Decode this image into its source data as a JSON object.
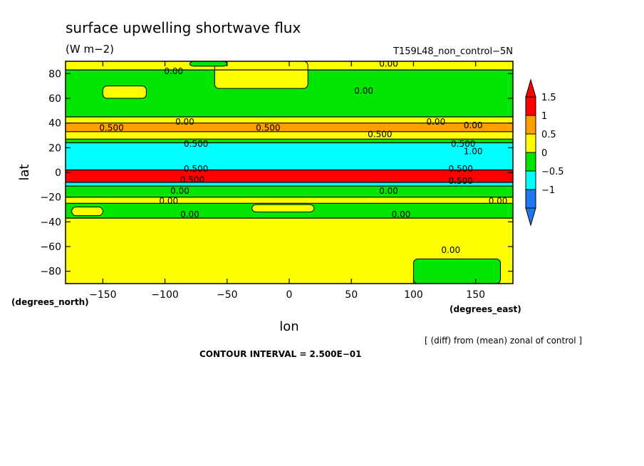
{
  "chart_data": {
    "type": "heatmap",
    "title": "surface upwelling shortwave flux",
    "units": "(W m−2)",
    "dataset": "T159L48_non_control−5N",
    "xlabel": "lon",
    "ylabel": "lat",
    "xunit": "(degrees_east)",
    "yunit": "(degrees_north)",
    "xlim": [
      -180,
      180
    ],
    "ylim": [
      -90,
      90
    ],
    "x_ticks": [
      -150,
      -100,
      -50,
      0,
      50,
      100,
      150
    ],
    "x_tick_labels": [
      "−150",
      "−100",
      "−50",
      "0",
      "50",
      "100",
      "150"
    ],
    "y_ticks": [
      80,
      60,
      40,
      20,
      0,
      -20,
      -40,
      -60,
      -80
    ],
    "y_tick_labels": [
      "80",
      "60",
      "40",
      "20",
      "0",
      "−20",
      "−40",
      "−60",
      "−80"
    ],
    "colorbar": {
      "levels": [
        -1,
        -0.5,
        0,
        0.5,
        1,
        1.5
      ],
      "labels": [
        "−1",
        "−0.5",
        "0",
        "0.5",
        "1",
        "1.5"
      ],
      "colors": [
        "#1e78f0",
        "#00ffff",
        "#00e600",
        "#ffff00",
        "#ffa000",
        "#ff0000"
      ],
      "under_color": "#1e78f0",
      "over_color": "#ff0000"
    },
    "lat_bands": [
      {
        "lat_from": 90,
        "lat_to": 83,
        "value": 0.25
      },
      {
        "lat_from": 83,
        "lat_to": 45,
        "value": -0.25
      },
      {
        "lat_from": 45,
        "lat_to": 40,
        "value": 0.25
      },
      {
        "lat_from": 40,
        "lat_to": 33,
        "value": 0.75
      },
      {
        "lat_from": 33,
        "lat_to": 27,
        "value": 0.25
      },
      {
        "lat_from": 27,
        "lat_to": 24,
        "value": -0.25
      },
      {
        "lat_from": 24,
        "lat_to": 2,
        "value": -0.75
      },
      {
        "lat_from": 2,
        "lat_to": -8,
        "value": 1.75
      },
      {
        "lat_from": -8,
        "lat_to": -11,
        "value": -0.75
      },
      {
        "lat_from": -11,
        "lat_to": -20,
        "value": -0.25
      },
      {
        "lat_from": -20,
        "lat_to": -25,
        "value": 0.25
      },
      {
        "lat_from": -25,
        "lat_to": -37,
        "value": -0.25
      },
      {
        "lat_from": -37,
        "lat_to": -90,
        "value": 0.25
      }
    ],
    "patches": [
      {
        "lon": [
          -60,
          15
        ],
        "lat": [
          68,
          90
        ],
        "value": 0.25
      },
      {
        "lon": [
          -150,
          -115
        ],
        "lat": [
          60,
          70
        ],
        "value": 0.25
      },
      {
        "lon": [
          -80,
          -50
        ],
        "lat": [
          86,
          90
        ],
        "value": -0.25
      },
      {
        "lon": [
          100,
          170
        ],
        "lat": [
          -90,
          -70
        ],
        "value": -0.25
      },
      {
        "lon": [
          -175,
          -150
        ],
        "lat": [
          -35,
          -28
        ],
        "value": 0.25
      },
      {
        "lon": [
          -30,
          20
        ],
        "lat": [
          -32,
          -26
        ],
        "value": 0.25
      }
    ],
    "contour_labels": [
      {
        "lon": -93,
        "lat": 82,
        "text": "0.00"
      },
      {
        "lon": 80,
        "lat": 88,
        "text": "0.00"
      },
      {
        "lon": 60,
        "lat": 66,
        "text": "0.00"
      },
      {
        "lon": -84,
        "lat": 41,
        "text": "0.00"
      },
      {
        "lon": 118,
        "lat": 41,
        "text": "0.00"
      },
      {
        "lon": 148,
        "lat": 38,
        "text": "0.00"
      },
      {
        "lon": -143,
        "lat": 36,
        "text": "0.500"
      },
      {
        "lon": -17,
        "lat": 36,
        "text": "0.500"
      },
      {
        "lon": 73,
        "lat": 31,
        "text": "0.500"
      },
      {
        "lon": 140,
        "lat": 23,
        "text": "0.500"
      },
      {
        "lon": -75,
        "lat": 23,
        "text": "0.500"
      },
      {
        "lon": 148,
        "lat": 17,
        "text": "1.00"
      },
      {
        "lon": -75,
        "lat": 3,
        "text": "0.500"
      },
      {
        "lon": 138,
        "lat": 3,
        "text": "0.500"
      },
      {
        "lon": -78,
        "lat": -6,
        "text": "0.500"
      },
      {
        "lon": 138,
        "lat": -7,
        "text": "0.500"
      },
      {
        "lon": -88,
        "lat": -15,
        "text": "0.00"
      },
      {
        "lon": 80,
        "lat": -15,
        "text": "0.00"
      },
      {
        "lon": -97,
        "lat": -23,
        "text": "0.00"
      },
      {
        "lon": 168,
        "lat": -23,
        "text": "0.00"
      },
      {
        "lon": -80,
        "lat": -34,
        "text": "0.00"
      },
      {
        "lon": 90,
        "lat": -34,
        "text": "0.00"
      },
      {
        "lon": 130,
        "lat": -63,
        "text": "0.00"
      }
    ],
    "contour_interval_label": "CONTOUR INTERVAL = 2.500E−01",
    "note": "[ (diff) from (mean) zonal of control ]"
  }
}
